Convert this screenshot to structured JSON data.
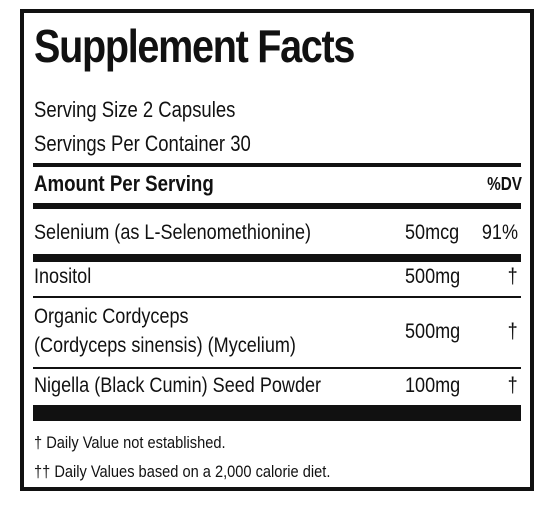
{
  "title": "Supplement Facts",
  "serving_size": "Serving Size 2 Capsules",
  "servings_per_container": "Servings Per Container 30",
  "amount_per_serving": "Amount Per Serving",
  "dv_header": "%DV",
  "rows": [
    {
      "name": "Selenium (as L-Selenomethionine)",
      "amount": "50mcg",
      "dv": "91%"
    },
    {
      "name": "Inositol",
      "amount": "500mg",
      "dv": "†"
    },
    {
      "name_line1": "Organic Cordyceps",
      "name_line2": "(Cordyceps sinensis) (Mycelium)",
      "amount": "500mg",
      "dv": "†"
    },
    {
      "name": "Nigella (Black Cumin) Seed Powder",
      "amount": "100mg",
      "dv": "†"
    }
  ],
  "footnotes": [
    "† Daily Value not established.",
    "†† Daily Values based on a 2,000 calorie diet."
  ]
}
